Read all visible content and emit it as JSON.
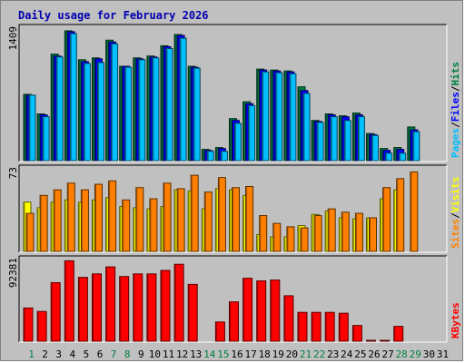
{
  "title": "Daily usage for February 2026",
  "colors": {
    "background": "#c0c0c0",
    "hits": "#008040",
    "files": "#0000ff",
    "pages": "#00c0ff",
    "visits": "#ffff00",
    "sites": "#ff8000",
    "kbytes": "#ff0000",
    "weekend_day": "#008040",
    "weekday": "#000000"
  },
  "chart_data": [
    {
      "type": "bar",
      "panel": "hits-files-pages",
      "ymax_label": "1409",
      "ylim": [
        0,
        1409
      ],
      "categories": [
        "1",
        "2",
        "3",
        "4",
        "5",
        "6",
        "7",
        "8",
        "9",
        "10",
        "11",
        "12",
        "13",
        "14",
        "15",
        "16",
        "17",
        "18",
        "19",
        "20",
        "21",
        "22",
        "23",
        "24",
        "25",
        "26",
        "27",
        "28",
        "29",
        "30",
        "31"
      ],
      "legend": [
        "Pages",
        "Files",
        "Hits"
      ],
      "series": [
        {
          "name": "Hits",
          "values": [
            710,
            500,
            1140,
            1390,
            1080,
            1100,
            1290,
            1010,
            1100,
            1120,
            1230,
            1350,
            1010,
            120,
            140,
            450,
            630,
            980,
            970,
            960,
            790,
            430,
            500,
            480,
            510,
            290,
            130,
            140,
            360,
            null,
            null
          ]
        },
        {
          "name": "Files",
          "values": [
            700,
            490,
            1120,
            1380,
            1060,
            1090,
            1270,
            1010,
            1090,
            1110,
            1220,
            1340,
            1000,
            110,
            130,
            430,
            610,
            970,
            960,
            950,
            750,
            420,
            490,
            470,
            490,
            280,
            110,
            120,
            330,
            null,
            null
          ]
        },
        {
          "name": "Pages",
          "values": [
            700,
            470,
            1110,
            1360,
            1040,
            1050,
            1250,
            1000,
            1080,
            1100,
            1200,
            1310,
            990,
            100,
            100,
            400,
            590,
            950,
            940,
            930,
            720,
            410,
            470,
            430,
            470,
            270,
            80,
            80,
            310,
            null,
            null
          ]
        }
      ]
    },
    {
      "type": "bar",
      "panel": "visits-sites",
      "ymax_label": "73",
      "ylim": [
        0,
        73
      ],
      "categories": [
        "1",
        "2",
        "3",
        "4",
        "5",
        "6",
        "7",
        "8",
        "9",
        "10",
        "11",
        "12",
        "13",
        "14",
        "15",
        "16",
        "17",
        "18",
        "19",
        "20",
        "21",
        "22",
        "23",
        "24",
        "25",
        "26",
        "27",
        "28",
        "29",
        "30",
        "31"
      ],
      "legend": [
        "Sites",
        "Visits"
      ],
      "series": [
        {
          "name": "Visits",
          "values": [
            44,
            39,
            44,
            46,
            44,
            46,
            48,
            40,
            39,
            38,
            40,
            55,
            54,
            38,
            56,
            55,
            50,
            15,
            13,
            13,
            23,
            33,
            36,
            30,
            29,
            30,
            47,
            55,
            null,
            null,
            null
          ]
        },
        {
          "name": "Sites",
          "values": [
            34,
            50,
            55,
            61,
            55,
            60,
            63,
            46,
            57,
            47,
            61,
            56,
            68,
            53,
            66,
            57,
            58,
            32,
            25,
            22,
            21,
            32,
            38,
            35,
            34,
            30,
            57,
            65,
            71,
            null,
            null
          ]
        }
      ]
    },
    {
      "type": "bar",
      "panel": "kbytes",
      "ymax_label": "92381",
      "ylim": [
        0,
        92381
      ],
      "categories": [
        "1",
        "2",
        "3",
        "4",
        "5",
        "6",
        "7",
        "8",
        "9",
        "10",
        "11",
        "12",
        "13",
        "14",
        "15",
        "16",
        "17",
        "18",
        "19",
        "20",
        "21",
        "22",
        "23",
        "24",
        "25",
        "26",
        "27",
        "28",
        "29",
        "30",
        "31"
      ],
      "legend": [
        "KBytes"
      ],
      "series": [
        {
          "name": "KBytes",
          "values": [
            38000,
            34000,
            67000,
            92000,
            73000,
            77000,
            85000,
            74000,
            77000,
            77000,
            81000,
            88000,
            65000,
            0,
            22000,
            45000,
            72000,
            69000,
            70000,
            52000,
            33000,
            33000,
            33000,
            32000,
            18000,
            1000,
            1000,
            17000,
            null,
            null,
            null
          ]
        }
      ]
    }
  ],
  "days": [
    {
      "label": "1",
      "weekend": true
    },
    {
      "label": "2",
      "weekend": false
    },
    {
      "label": "3",
      "weekend": false
    },
    {
      "label": "4",
      "weekend": false
    },
    {
      "label": "5",
      "weekend": false
    },
    {
      "label": "6",
      "weekend": false
    },
    {
      "label": "7",
      "weekend": true
    },
    {
      "label": "8",
      "weekend": true
    },
    {
      "label": "9",
      "weekend": false
    },
    {
      "label": "10",
      "weekend": false
    },
    {
      "label": "11",
      "weekend": false
    },
    {
      "label": "12",
      "weekend": false
    },
    {
      "label": "13",
      "weekend": false
    },
    {
      "label": "14",
      "weekend": true
    },
    {
      "label": "15",
      "weekend": true
    },
    {
      "label": "16",
      "weekend": false
    },
    {
      "label": "17",
      "weekend": false
    },
    {
      "label": "18",
      "weekend": false
    },
    {
      "label": "19",
      "weekend": false
    },
    {
      "label": "20",
      "weekend": false
    },
    {
      "label": "21",
      "weekend": true
    },
    {
      "label": "22",
      "weekend": true
    },
    {
      "label": "23",
      "weekend": false
    },
    {
      "label": "24",
      "weekend": false
    },
    {
      "label": "25",
      "weekend": false
    },
    {
      "label": "26",
      "weekend": false
    },
    {
      "label": "27",
      "weekend": false
    },
    {
      "label": "28",
      "weekend": true
    },
    {
      "label": "29",
      "weekend": true
    },
    {
      "label": "30",
      "weekend": false
    },
    {
      "label": "31",
      "weekend": false
    }
  ]
}
